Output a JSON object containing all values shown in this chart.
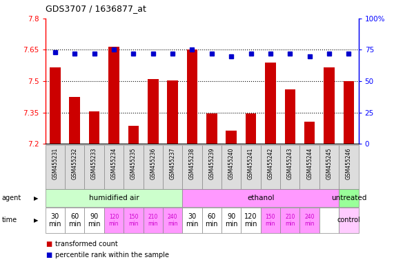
{
  "title": "GDS3707 / 1636877_at",
  "samples": [
    "GSM455231",
    "GSM455232",
    "GSM455233",
    "GSM455234",
    "GSM455235",
    "GSM455236",
    "GSM455237",
    "GSM455238",
    "GSM455239",
    "GSM455240",
    "GSM455241",
    "GSM455242",
    "GSM455243",
    "GSM455244",
    "GSM455245",
    "GSM455246"
  ],
  "bar_values": [
    7.565,
    7.425,
    7.355,
    7.665,
    7.285,
    7.51,
    7.505,
    7.65,
    7.345,
    7.265,
    7.345,
    7.59,
    7.46,
    7.305,
    7.565,
    7.5
  ],
  "dot_values": [
    73,
    72,
    72,
    75,
    72,
    72,
    72,
    75,
    72,
    70,
    72,
    72,
    72,
    70,
    72,
    72
  ],
  "bar_color": "#cc0000",
  "dot_color": "#0000cc",
  "ylim_left": [
    7.2,
    7.8
  ],
  "ylim_right": [
    0,
    100
  ],
  "yticks_left": [
    7.2,
    7.35,
    7.5,
    7.65,
    7.8
  ],
  "yticks_right": [
    0,
    25,
    50,
    75,
    100
  ],
  "hlines": [
    7.35,
    7.5,
    7.65
  ],
  "agent_groups": [
    {
      "label": "humidified air",
      "start": 0,
      "end": 7,
      "color": "#ccffcc"
    },
    {
      "label": "ethanol",
      "start": 7,
      "end": 15,
      "color": "#ff99ff"
    },
    {
      "label": "untreated",
      "start": 15,
      "end": 16,
      "color": "#99ff99"
    }
  ],
  "background_color": "#ffffff",
  "bar_bottom": 7.2,
  "time_labels_white": [
    "30\nmin",
    "60\nmin",
    "90\nmin",
    "30\nmin",
    "60\nmin",
    "90\nmin"
  ],
  "time_labels_pink": [
    "120\nmin",
    "150\nmin",
    "210\nmin",
    "240\nmin",
    "120\nmin",
    "150\nmin",
    "210\nmin",
    "240\nmin"
  ],
  "white_indices": [
    0,
    1,
    2,
    7,
    8,
    9
  ],
  "pink_indices": [
    3,
    4,
    5,
    6,
    10,
    11,
    12,
    13
  ],
  "control_index": 15
}
